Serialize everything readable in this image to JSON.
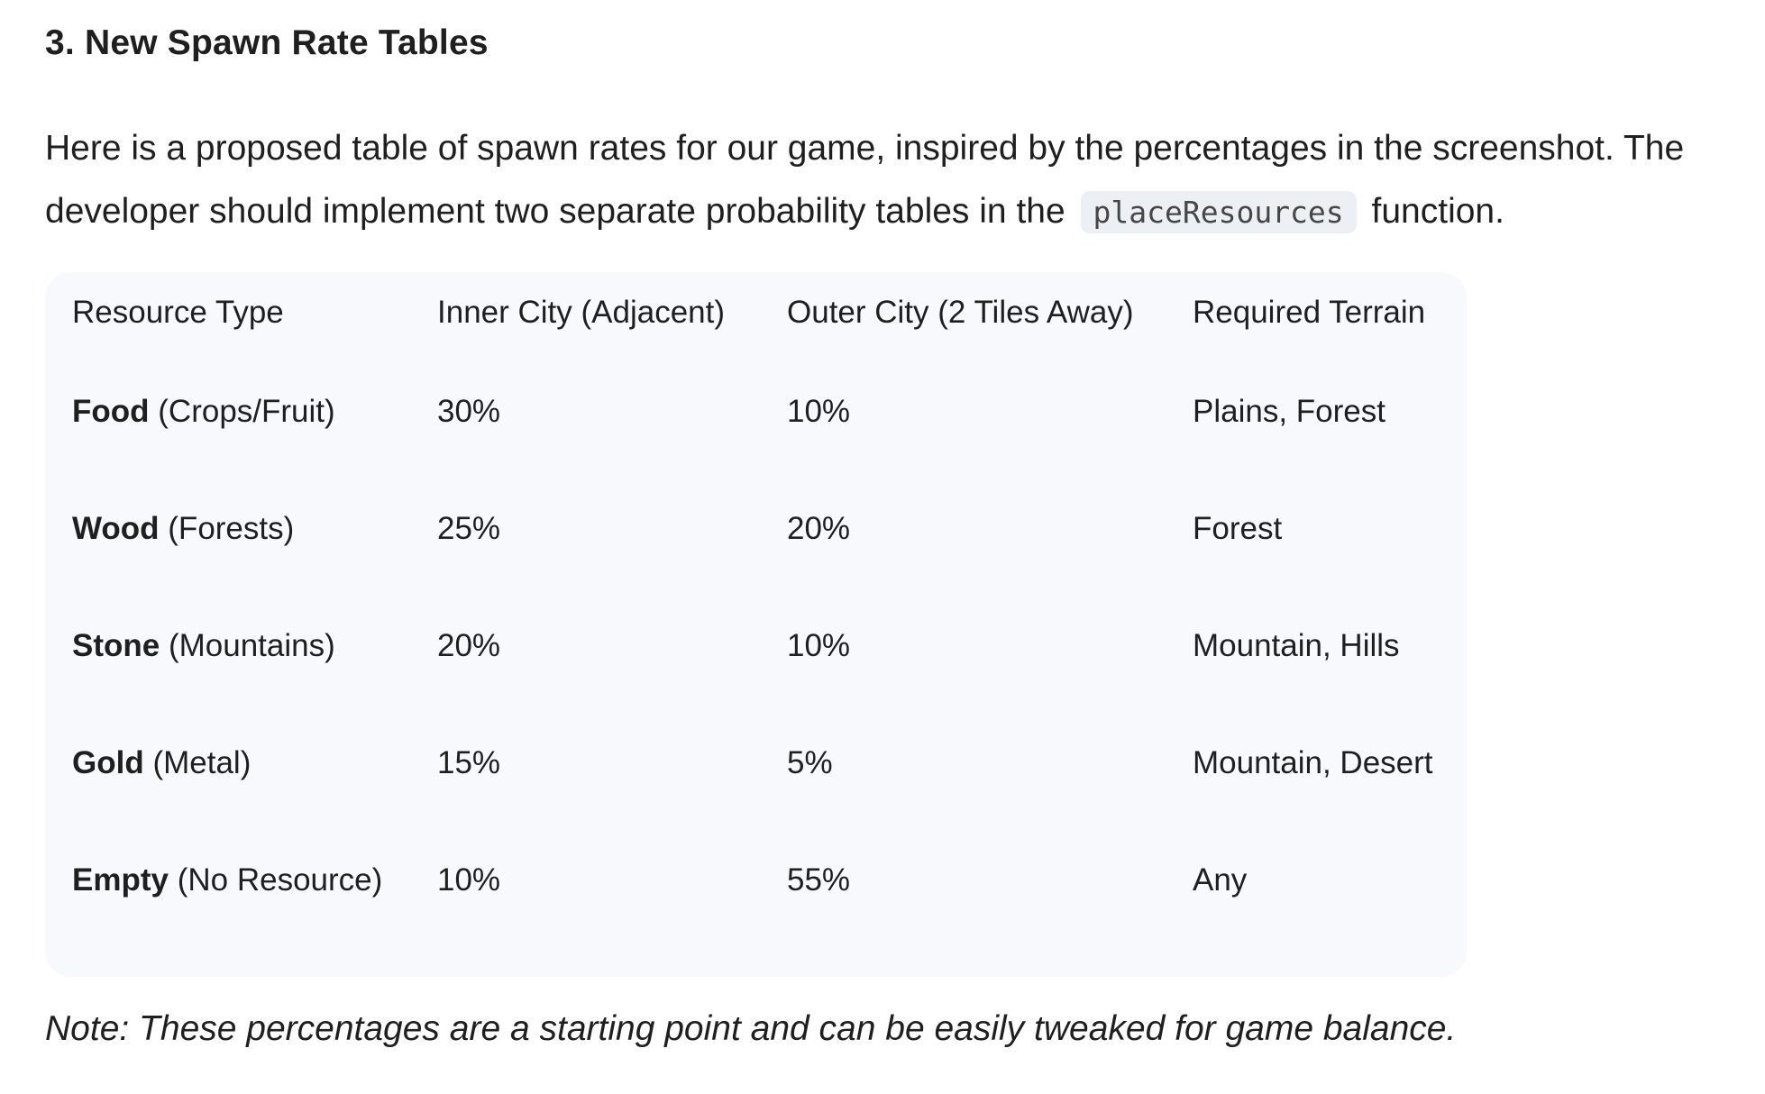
{
  "heading": "3. New Spawn Rate Tables",
  "intro": {
    "line1": "Here is a proposed table of spawn rates for our game, inspired by the percentages in the screenshot. The",
    "line2_before": "developer should implement two separate probability tables in the",
    "code": "placeResources",
    "line2_after": "function."
  },
  "table": {
    "headers": [
      "Resource Type",
      "Inner City (Adjacent)",
      "Outer City (2 Tiles Away)",
      "Required Terrain"
    ],
    "rows": [
      {
        "name": "Food",
        "detail": "(Crops/Fruit)",
        "inner": "30%",
        "outer": "10%",
        "terrain": "Plains, Forest"
      },
      {
        "name": "Wood",
        "detail": "(Forests)",
        "inner": "25%",
        "outer": "20%",
        "terrain": "Forest"
      },
      {
        "name": "Stone",
        "detail": "(Mountains)",
        "inner": "20%",
        "outer": "10%",
        "terrain": "Mountain, Hills"
      },
      {
        "name": "Gold",
        "detail": "(Metal)",
        "inner": "15%",
        "outer": "5%",
        "terrain": "Mountain, Desert"
      },
      {
        "name": "Empty",
        "detail": "(No Resource)",
        "inner": "10%",
        "outer": "55%",
        "terrain": "Any"
      }
    ]
  },
  "note": "Note: These percentages are a starting point and can be easily tweaked for game balance."
}
